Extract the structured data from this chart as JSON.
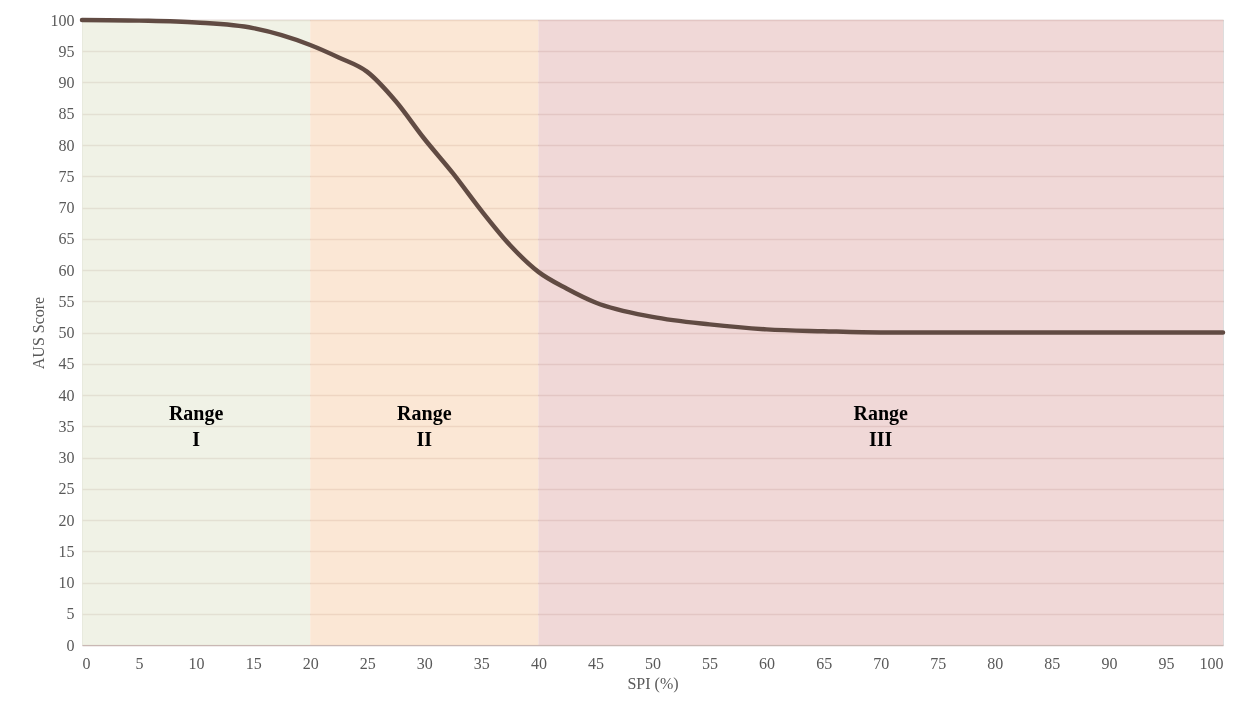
{
  "chart_data": {
    "type": "line",
    "xlabel": "SPI (%)",
    "ylabel": "AUS Score",
    "x": [
      0,
      5,
      10,
      15,
      20,
      22.5,
      25,
      27.5,
      30,
      32.5,
      35,
      37.5,
      40,
      42.5,
      45,
      50,
      55,
      60,
      65,
      70,
      80,
      90,
      100
    ],
    "series": [
      {
        "color": "#614b43",
        "values": [
          100,
          99.9,
          99.6,
          98.7,
          96,
          94,
          91.7,
          87,
          81,
          75.5,
          69.5,
          64,
          59.7,
          57,
          54.8,
          52.5,
          51.3,
          50.5,
          50.2,
          50,
          50,
          50,
          50
        ]
      }
    ],
    "xlim": [
      0,
      100
    ],
    "xticks": [
      0,
      5,
      10,
      15,
      20,
      25,
      30,
      35,
      40,
      45,
      50,
      55,
      60,
      65,
      70,
      75,
      80,
      85,
      90,
      95,
      100
    ],
    "ylim": [
      0,
      100
    ],
    "yticks": [
      0,
      5,
      10,
      15,
      20,
      25,
      30,
      35,
      40,
      45,
      50,
      55,
      60,
      65,
      70,
      75,
      80,
      85,
      90,
      95,
      100
    ],
    "grid": "y",
    "marker": "none",
    "line_style": "solid",
    "bands": [
      {
        "axis": "x",
        "from": 0,
        "to": 20,
        "label": "Range\nI",
        "color": "#ebeedd"
      },
      {
        "axis": "x",
        "from": 20,
        "to": 40,
        "label": "Range\nII",
        "color": "#f9dfc7"
      },
      {
        "axis": "x",
        "from": 40,
        "to": 100,
        "label": "Range\nIII",
        "color": "#ebcbca"
      }
    ]
  }
}
